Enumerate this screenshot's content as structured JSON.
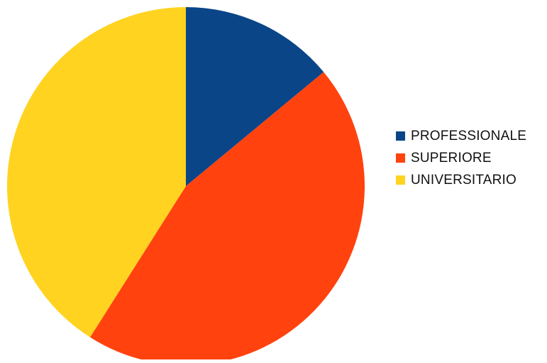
{
  "chart_data": {
    "type": "pie",
    "title": "",
    "categories": [
      "PROFESSIONALE",
      "SUPERIORE",
      "UNIVERSITARIO"
    ],
    "values": [
      14,
      45,
      41
    ],
    "colors": [
      "#0a4588",
      "#ff420e",
      "#ffd320"
    ],
    "start_angle": "12 o'clock",
    "direction": "clockwise",
    "legend_position": "right"
  }
}
